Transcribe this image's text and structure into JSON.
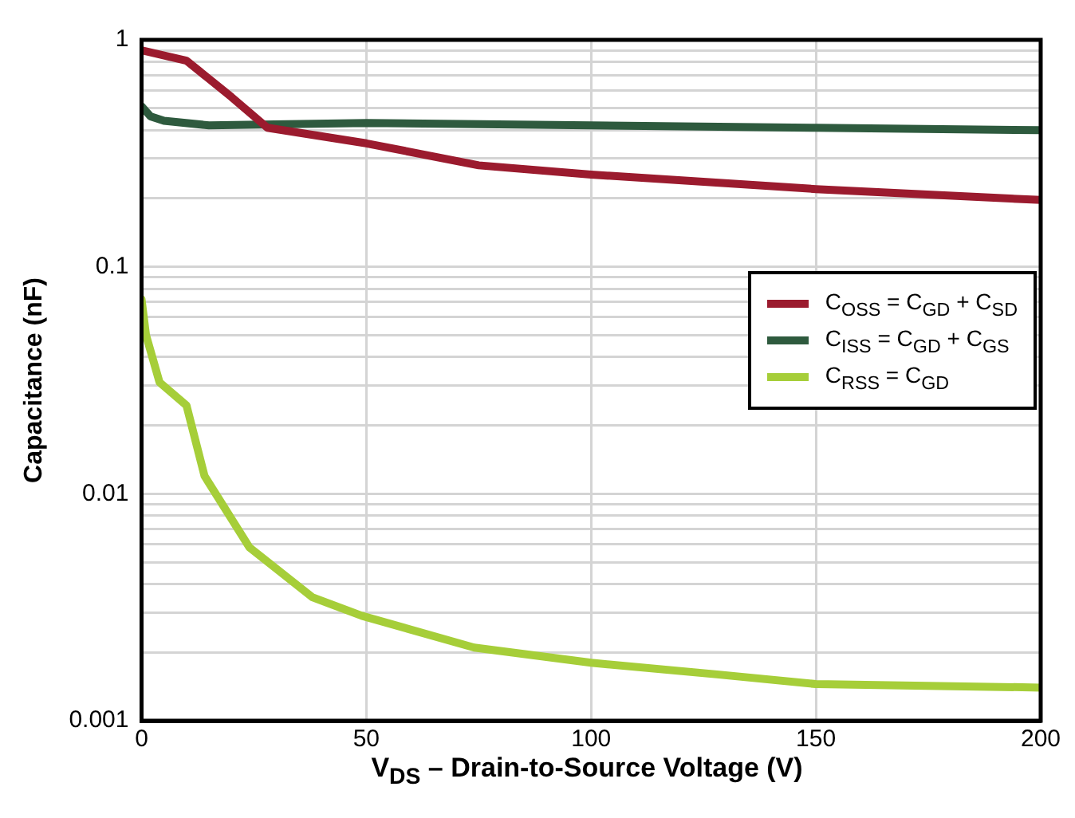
{
  "chart_data": {
    "type": "line",
    "xlabel": "V$_{DS}$ – Drain-to-Source Voltage (V)",
    "ylabel": "Capacitance (nF)",
    "log": "y",
    "grid": true,
    "legend": "right",
    "marker": "none",
    "line_style": "solid",
    "xlim": [
      0,
      200
    ],
    "xticks": [
      0,
      50,
      100,
      150,
      200
    ],
    "ylim": [
      0.001,
      1
    ],
    "yticks": [
      1,
      0.1,
      0.01,
      0.001,
      {
        "value": 0.002,
        "label": null
      },
      {
        "value": 0.003,
        "label": null
      },
      {
        "value": 0.004,
        "label": null
      },
      {
        "value": 0.005,
        "label": null
      },
      {
        "value": 0.006,
        "label": null
      },
      {
        "value": 0.007,
        "label": null
      },
      {
        "value": 0.008,
        "label": null
      },
      {
        "value": 0.009,
        "label": null
      },
      {
        "value": 0.02,
        "label": null
      },
      {
        "value": 0.03,
        "label": null
      },
      {
        "value": 0.04,
        "label": null
      },
      {
        "value": 0.05,
        "label": null
      },
      {
        "value": 0.06,
        "label": null
      },
      {
        "value": 0.07,
        "label": null
      },
      {
        "value": 0.08,
        "label": null
      },
      {
        "value": 0.09,
        "label": null
      },
      {
        "value": 0.2,
        "label": null
      },
      {
        "value": 0.3,
        "label": null
      },
      {
        "value": 0.4,
        "label": null
      },
      {
        "value": 0.5,
        "label": null
      },
      {
        "value": 0.6,
        "label": null
      },
      {
        "value": 0.7,
        "label": null
      },
      {
        "value": 0.8,
        "label": null
      },
      {
        "value": 0.9,
        "label": null
      }
    ],
    "series": [
      {
        "name": "C$_{OSS}$ = C$_{GD}$ + C$_{SD}$",
        "color": "#9b1b2e",
        "x": [
          0,
          10,
          20,
          28,
          50,
          75,
          100,
          150,
          200
        ],
        "values": [
          0.9,
          0.81,
          0.56,
          0.41,
          0.35,
          0.28,
          0.255,
          0.22,
          0.197
        ]
      },
      {
        "name": "C$_{ISS}$ = C$_{GD}$ + C$_{GS}$",
        "color": "#2e5a3e",
        "x": [
          0,
          2,
          5,
          15,
          50,
          100,
          150,
          200
        ],
        "values": [
          0.51,
          0.46,
          0.44,
          0.42,
          0.43,
          0.42,
          0.41,
          0.4
        ]
      },
      {
        "name": "C$_{RSS}$ = C$_{GD}$",
        "color": "#a6ce39",
        "x": [
          0,
          1,
          4,
          10,
          14,
          24,
          38,
          49,
          74,
          100,
          128,
          150,
          200
        ],
        "values": [
          0.072,
          0.05,
          0.031,
          0.0245,
          0.012,
          0.0058,
          0.0035,
          0.0029,
          0.0021,
          0.0018,
          0.0016,
          0.00145,
          0.0014
        ]
      }
    ]
  }
}
